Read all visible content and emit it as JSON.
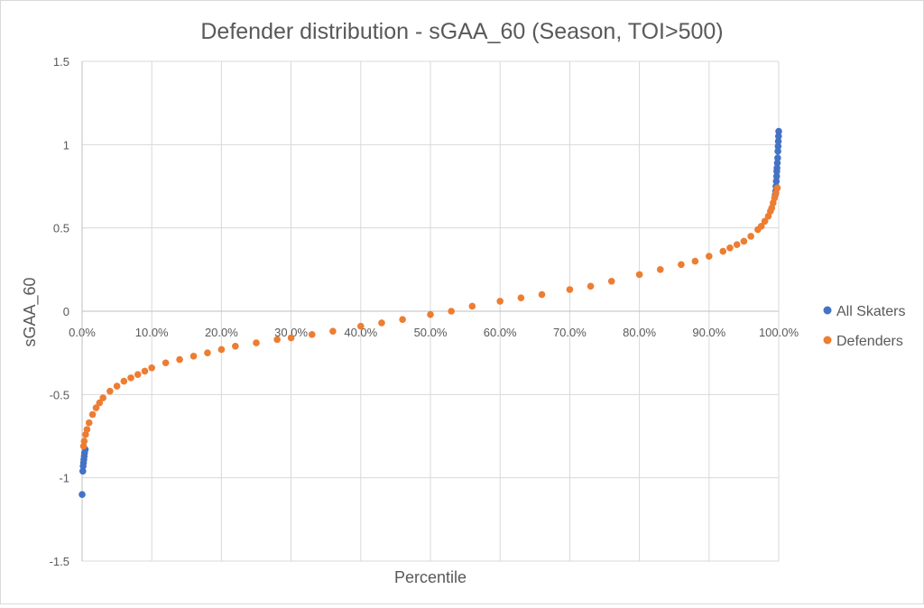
{
  "chart_data": {
    "type": "scatter",
    "title": "Defender distribution - sGAA_60 (Season, TOI>500)",
    "xlabel": "Percentile",
    "ylabel": "sGAA_60",
    "xlim": [
      0,
      100
    ],
    "ylim": [
      -1.5,
      1.5
    ],
    "x_ticks": [
      "0.0%",
      "10.0%",
      "20.0%",
      "30.0%",
      "40.0%",
      "50.0%",
      "60.0%",
      "70.0%",
      "80.0%",
      "90.0%",
      "100.0%"
    ],
    "y_ticks": [
      "1.5",
      "1",
      "0.5",
      "0",
      "-0.5",
      "-1",
      "-1.5"
    ],
    "legend_position": "right",
    "series": [
      {
        "name": "All Skaters",
        "color": "#4472C4",
        "points": [
          [
            0,
            -1.1
          ],
          [
            0.1,
            -0.96
          ],
          [
            0.15,
            -0.93
          ],
          [
            0.2,
            -0.91
          ],
          [
            0.25,
            -0.89
          ],
          [
            0.3,
            -0.87
          ],
          [
            0.35,
            -0.85
          ],
          [
            0.45,
            -0.83
          ],
          [
            99.5,
            0.7
          ],
          [
            99.55,
            0.72
          ],
          [
            99.6,
            0.75
          ],
          [
            99.65,
            0.78
          ],
          [
            99.7,
            0.81
          ],
          [
            99.72,
            0.84
          ],
          [
            99.75,
            0.86
          ],
          [
            99.8,
            0.89
          ],
          [
            99.85,
            0.92
          ],
          [
            99.88,
            0.96
          ],
          [
            99.91,
            0.99
          ],
          [
            99.94,
            1.02
          ],
          [
            99.97,
            1.05
          ],
          [
            100,
            1.08
          ]
        ]
      },
      {
        "name": "Defenders",
        "color": "#ED7D31",
        "points": [
          [
            0.2,
            -0.81
          ],
          [
            0.3,
            -0.78
          ],
          [
            0.5,
            -0.74
          ],
          [
            0.7,
            -0.71
          ],
          [
            1,
            -0.67
          ],
          [
            1.5,
            -0.62
          ],
          [
            2,
            -0.58
          ],
          [
            2.5,
            -0.55
          ],
          [
            3,
            -0.52
          ],
          [
            4,
            -0.48
          ],
          [
            5,
            -0.45
          ],
          [
            6,
            -0.42
          ],
          [
            7,
            -0.4
          ],
          [
            8,
            -0.38
          ],
          [
            9,
            -0.36
          ],
          [
            10,
            -0.34
          ],
          [
            12,
            -0.31
          ],
          [
            14,
            -0.29
          ],
          [
            16,
            -0.27
          ],
          [
            18,
            -0.25
          ],
          [
            20,
            -0.23
          ],
          [
            22,
            -0.21
          ],
          [
            25,
            -0.19
          ],
          [
            28,
            -0.17
          ],
          [
            30,
            -0.16
          ],
          [
            33,
            -0.14
          ],
          [
            36,
            -0.12
          ],
          [
            40,
            -0.09
          ],
          [
            43,
            -0.07
          ],
          [
            46,
            -0.05
          ],
          [
            50,
            -0.02
          ],
          [
            53,
            0.0
          ],
          [
            56,
            0.03
          ],
          [
            60,
            0.06
          ],
          [
            63,
            0.08
          ],
          [
            66,
            0.1
          ],
          [
            70,
            0.13
          ],
          [
            73,
            0.15
          ],
          [
            76,
            0.18
          ],
          [
            80,
            0.22
          ],
          [
            83,
            0.25
          ],
          [
            86,
            0.28
          ],
          [
            88,
            0.3
          ],
          [
            90,
            0.33
          ],
          [
            92,
            0.36
          ],
          [
            93,
            0.38
          ],
          [
            94,
            0.4
          ],
          [
            95,
            0.42
          ],
          [
            96,
            0.45
          ],
          [
            97,
            0.49
          ],
          [
            97.5,
            0.51
          ],
          [
            98,
            0.54
          ],
          [
            98.5,
            0.57
          ],
          [
            98.8,
            0.6
          ],
          [
            99,
            0.62
          ],
          [
            99.2,
            0.65
          ],
          [
            99.4,
            0.68
          ],
          [
            99.6,
            0.71
          ],
          [
            99.8,
            0.74
          ]
        ]
      }
    ]
  }
}
